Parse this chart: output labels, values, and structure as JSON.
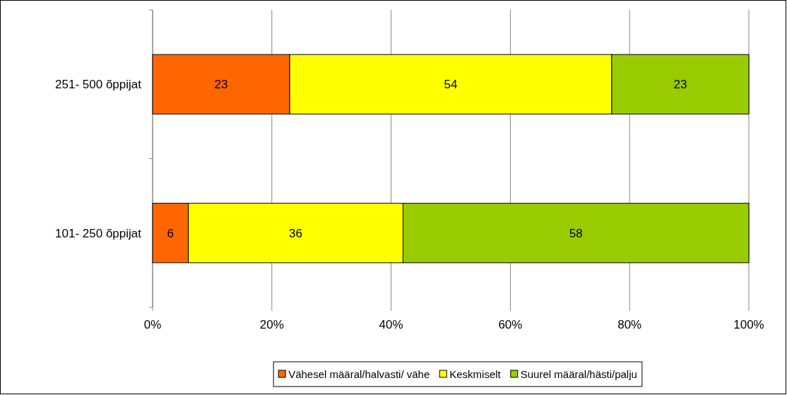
{
  "chart_data": {
    "type": "bar",
    "orientation": "horizontal",
    "stacked": true,
    "categories": [
      "251- 500 õppijat",
      "101- 250 õppijat"
    ],
    "series": [
      {
        "name": "Vähesel määral/halvasti/ vähe",
        "color": "#ff6600",
        "values": [
          23,
          6
        ]
      },
      {
        "name": "Keskmiselt",
        "color": "#ffff00",
        "values": [
          54,
          36
        ]
      },
      {
        "name": "Suurel määral/hästi/palju",
        "color": "#99cc00",
        "values": [
          23,
          58
        ]
      }
    ],
    "xlim": [
      0,
      100
    ],
    "xticks": [
      {
        "value": 0,
        "label": "0%"
      },
      {
        "value": 20,
        "label": "20%"
      },
      {
        "value": 40,
        "label": "40%"
      },
      {
        "value": 60,
        "label": "60%"
      },
      {
        "value": 80,
        "label": "80%"
      },
      {
        "value": 100,
        "label": "100%"
      }
    ],
    "grid": "x",
    "legend": "bottom",
    "data_labels": true
  }
}
